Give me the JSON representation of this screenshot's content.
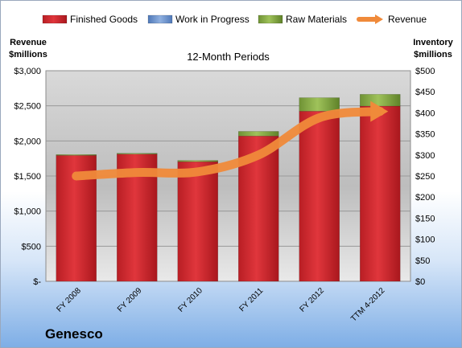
{
  "chart_data": {
    "type": "bar",
    "title": "12-Month Periods",
    "company": "Genesco",
    "categories": [
      "FY 2008",
      "FY 2009",
      "FY 2010",
      "FY 2011",
      "FY 2012",
      "TTM 4-2012"
    ],
    "series": [
      {
        "name": "Finished Goods",
        "axis": "right",
        "stacked": true,
        "color": "#d4282e",
        "values": [
          299,
          302,
          284,
          345,
          404,
          416
        ]
      },
      {
        "name": "Work in Progress",
        "axis": "right",
        "stacked": true,
        "color": "#6f95cc",
        "values": [
          0,
          0,
          0,
          0,
          0,
          0
        ]
      },
      {
        "name": "Raw Materials",
        "axis": "right",
        "stacked": true,
        "color": "#8db04a",
        "values": [
          2,
          2,
          3,
          11,
          32,
          28
        ]
      },
      {
        "name": "Revenue",
        "axis": "left",
        "type": "line",
        "color": "#f08a3a",
        "values": [
          1500,
          1550,
          1560,
          1800,
          2330,
          2420
        ]
      }
    ],
    "left_axis": {
      "label_line1": "Revenue",
      "label_line2": "$millions",
      "ylim": [
        0,
        3000
      ],
      "ticks": [
        "$-",
        "$500",
        "$1,000",
        "$1,500",
        "$2,000",
        "$2,500",
        "$3,000"
      ]
    },
    "right_axis": {
      "label_line1": "Inventory",
      "label_line2": "$millions",
      "ylim": [
        0,
        500
      ],
      "ticks": [
        "$0",
        "$50",
        "$100",
        "$150",
        "$200",
        "$250",
        "$300",
        "$350",
        "$400",
        "$450",
        "$500"
      ]
    },
    "legend_position": "top",
    "grid": true
  }
}
